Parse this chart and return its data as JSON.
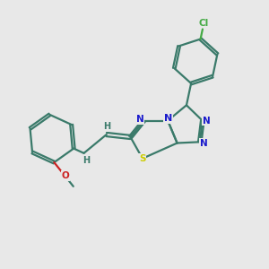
{
  "background_color": "#e8e8e8",
  "bond_color": "#3a7a6a",
  "n_color": "#1a1acc",
  "s_color": "#cccc00",
  "o_color": "#cc2222",
  "cl_color": "#44aa44",
  "h_color": "#3a7a6a",
  "line_width": 1.6,
  "figsize": [
    3.0,
    3.0
  ],
  "dpi": 100,
  "xlim": [
    0,
    10
  ],
  "ylim": [
    0,
    10
  ]
}
